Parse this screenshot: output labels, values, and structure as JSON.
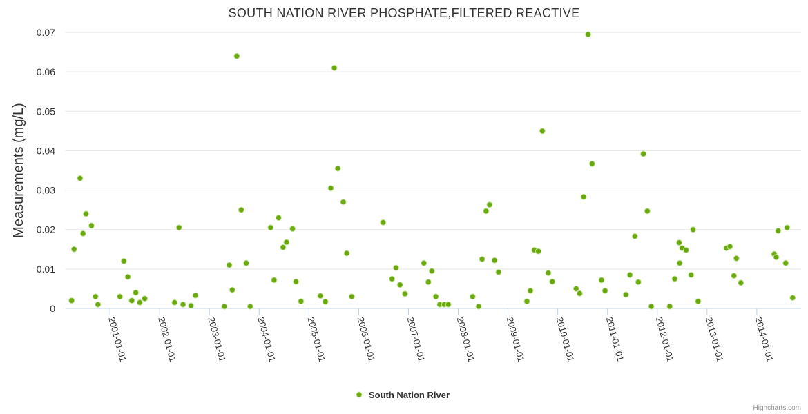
{
  "chart_data": {
    "type": "scatter",
    "title": "SOUTH NATION RIVER PHOSPHATE,FILTERED REACTIVE",
    "ylabel": "Measurements (mg/L)",
    "xlabel": "",
    "ylim": [
      0,
      0.07
    ],
    "y_ticks": [
      0,
      0.01,
      0.02,
      0.03,
      0.04,
      0.05,
      0.06,
      0.07
    ],
    "y_tick_labels": [
      "0",
      "0.01",
      "0.02",
      "0.03",
      "0.04",
      "0.05",
      "0.06",
      "0.07"
    ],
    "x_range": [
      2000.11,
      2014.89
    ],
    "x_ticks": [
      2001,
      2002,
      2003,
      2004,
      2005,
      2006,
      2007,
      2008,
      2009,
      2010,
      2011,
      2012,
      2013,
      2014
    ],
    "x_tick_labels": [
      "2001-01-01",
      "2002-01-01",
      "2003-01-01",
      "2004-01-01",
      "2005-01-01",
      "2006-01-01",
      "2007-01-01",
      "2008-01-01",
      "2009-01-01",
      "2010-01-01",
      "2011-01-01",
      "2012-01-01",
      "2013-01-01",
      "2014-01-01"
    ],
    "grid": true,
    "legend_position": "bottom-center",
    "series": [
      {
        "name": "South Nation River",
        "color": "#6aa80f",
        "points": [
          [
            2000.23,
            0.002
          ],
          [
            2000.28,
            0.015
          ],
          [
            2000.4,
            0.033
          ],
          [
            2000.46,
            0.019
          ],
          [
            2000.52,
            0.024
          ],
          [
            2000.63,
            0.021
          ],
          [
            2000.71,
            0.003
          ],
          [
            2000.76,
            0.001
          ],
          [
            2001.2,
            0.003
          ],
          [
            2001.28,
            0.012
          ],
          [
            2001.36,
            0.008
          ],
          [
            2001.44,
            0.002
          ],
          [
            2001.52,
            0.004
          ],
          [
            2001.6,
            0.0015
          ],
          [
            2001.7,
            0.0025
          ],
          [
            2002.3,
            0.0015
          ],
          [
            2002.39,
            0.0205
          ],
          [
            2002.47,
            0.001
          ],
          [
            2002.63,
            0.0007
          ],
          [
            2002.72,
            0.0033
          ],
          [
            2003.3,
            0.0005
          ],
          [
            2003.4,
            0.011
          ],
          [
            2003.46,
            0.0047
          ],
          [
            2003.55,
            0.064
          ],
          [
            2003.64,
            0.025
          ],
          [
            2003.74,
            0.0115
          ],
          [
            2003.82,
            0.0005
          ],
          [
            2004.23,
            0.0205
          ],
          [
            2004.3,
            0.0072
          ],
          [
            2004.39,
            0.023
          ],
          [
            2004.48,
            0.0155
          ],
          [
            2004.55,
            0.0168
          ],
          [
            2004.67,
            0.0202
          ],
          [
            2004.74,
            0.0068
          ],
          [
            2004.84,
            0.0018
          ],
          [
            2005.23,
            0.0032
          ],
          [
            2005.33,
            0.0017
          ],
          [
            2005.44,
            0.0305
          ],
          [
            2005.51,
            0.061
          ],
          [
            2005.58,
            0.0355
          ],
          [
            2005.69,
            0.027
          ],
          [
            2005.76,
            0.014
          ],
          [
            2005.86,
            0.003
          ],
          [
            2006.49,
            0.0218
          ],
          [
            2006.67,
            0.0075
          ],
          [
            2006.75,
            0.0103
          ],
          [
            2006.83,
            0.006
          ],
          [
            2006.93,
            0.0037
          ],
          [
            2007.31,
            0.0115
          ],
          [
            2007.4,
            0.0067
          ],
          [
            2007.47,
            0.0095
          ],
          [
            2007.55,
            0.003
          ],
          [
            2007.63,
            0.001
          ],
          [
            2007.72,
            0.001
          ],
          [
            2007.8,
            0.001
          ],
          [
            2008.29,
            0.003
          ],
          [
            2008.41,
            0.0005
          ],
          [
            2008.48,
            0.0125
          ],
          [
            2008.56,
            0.0247
          ],
          [
            2008.63,
            0.0263
          ],
          [
            2008.73,
            0.0122
          ],
          [
            2008.81,
            0.0092
          ],
          [
            2009.38,
            0.0018
          ],
          [
            2009.45,
            0.0045
          ],
          [
            2009.53,
            0.0148
          ],
          [
            2009.61,
            0.0145
          ],
          [
            2009.69,
            0.045
          ],
          [
            2009.81,
            0.009
          ],
          [
            2009.89,
            0.0068
          ],
          [
            2010.37,
            0.005
          ],
          [
            2010.44,
            0.0038
          ],
          [
            2010.52,
            0.0283
          ],
          [
            2010.61,
            0.0695
          ],
          [
            2010.69,
            0.0367
          ],
          [
            2010.88,
            0.0072
          ],
          [
            2010.95,
            0.0045
          ],
          [
            2011.37,
            0.0035
          ],
          [
            2011.45,
            0.0085
          ],
          [
            2011.55,
            0.0183
          ],
          [
            2011.62,
            0.0067
          ],
          [
            2011.72,
            0.0392
          ],
          [
            2011.8,
            0.0247
          ],
          [
            2011.88,
            0.0005
          ],
          [
            2012.25,
            0.0005
          ],
          [
            2012.35,
            0.0075
          ],
          [
            2012.44,
            0.0167
          ],
          [
            2012.45,
            0.0115
          ],
          [
            2012.5,
            0.0153
          ],
          [
            2012.58,
            0.0148
          ],
          [
            2012.68,
            0.0085
          ],
          [
            2012.72,
            0.02
          ],
          [
            2012.82,
            0.0018
          ],
          [
            2013.39,
            0.0153
          ],
          [
            2013.46,
            0.0157
          ],
          [
            2013.54,
            0.0083
          ],
          [
            2013.59,
            0.0127
          ],
          [
            2013.68,
            0.0065
          ],
          [
            2014.35,
            0.0138
          ],
          [
            2014.39,
            0.013
          ],
          [
            2014.43,
            0.0197
          ],
          [
            2014.58,
            0.0115
          ],
          [
            2014.61,
            0.0205
          ],
          [
            2014.72,
            0.0027
          ]
        ]
      }
    ]
  },
  "legend": {
    "label": "South Nation River"
  },
  "credits": {
    "label": "Highcharts.com"
  }
}
